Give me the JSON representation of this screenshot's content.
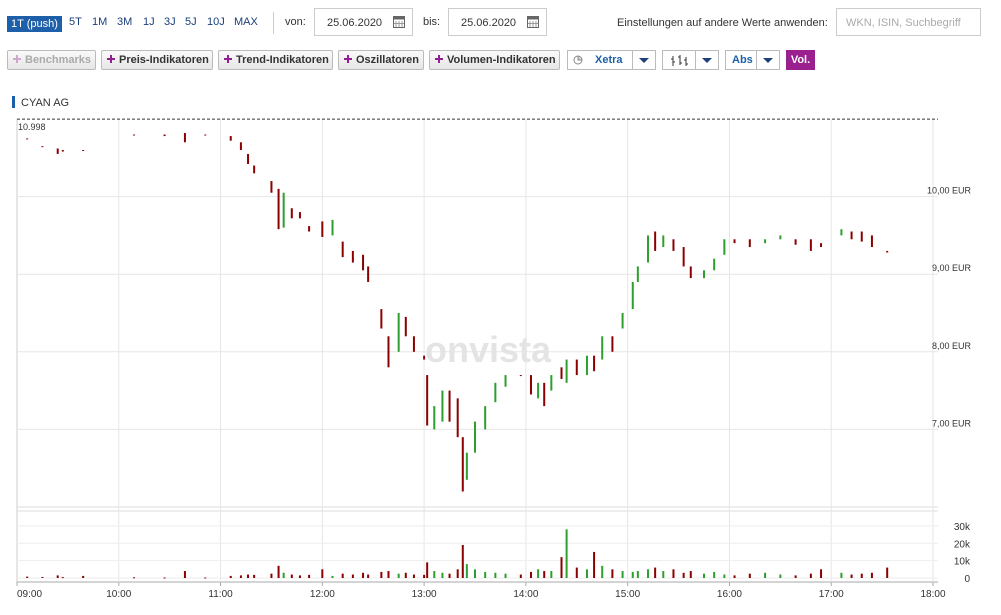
{
  "toolbar": {
    "periods": [
      "1T (push)",
      "5T",
      "1M",
      "3M",
      "1J",
      "3J",
      "5J",
      "10J",
      "MAX"
    ],
    "from_label": "von:",
    "from_date": "25.06.2020",
    "to_label": "bis:",
    "to_date": "25.06.2020",
    "apply_label": "Einstellungen auf andere Werte anwenden:",
    "search_placeholder": "WKN, ISIN, Suchbegriff",
    "buttons": [
      "Benchmarks",
      "Preis-Indikatoren",
      "Trend-Indikatoren",
      "Oszillatoren",
      "Volumen-Indikatoren"
    ],
    "exchange": "Xetra",
    "scale": "Abs",
    "volume_toggle": "Vol."
  },
  "chart_data": {
    "type": "candlestick",
    "title": "CYAN AG",
    "watermark": "onvista",
    "reference_line": 10.998,
    "up_color": "#2e9e2e",
    "down_color": "#8b0000",
    "grid": true,
    "xlim": [
      9,
      18
    ],
    "xticks": [
      {
        "value": 9,
        "label": "09:00"
      },
      {
        "value": 10,
        "label": "10:00"
      },
      {
        "value": 11,
        "label": "11:00"
      },
      {
        "value": 12,
        "label": "12:00"
      },
      {
        "value": 13,
        "label": "13:00"
      },
      {
        "value": 14,
        "label": "14:00"
      },
      {
        "value": 15,
        "label": "15:00"
      },
      {
        "value": 16,
        "label": "16:00"
      },
      {
        "value": 17,
        "label": "17:00"
      },
      {
        "value": 18,
        "label": "18:00"
      }
    ],
    "ylim": [
      6.0,
      11.0
    ],
    "yticks": [
      {
        "value": 10,
        "label": "10,00 EUR"
      },
      {
        "value": 9,
        "label": "9,00 EUR"
      },
      {
        "value": 8,
        "label": "8,00 EUR"
      },
      {
        "value": 7,
        "label": "7,00 EUR"
      }
    ],
    "y2lim": [
      0,
      38000
    ],
    "y2ticks": [
      {
        "value": 30000,
        "label": "30k"
      },
      {
        "value": 20000,
        "label": "20k"
      },
      {
        "value": 10000,
        "label": "10k"
      },
      0
    ],
    "x": [
      9.1,
      9.25,
      9.4,
      9.45,
      9.65,
      10.15,
      10.45,
      10.65,
      10.85,
      11.1,
      11.2,
      11.27,
      11.33,
      11.5,
      11.57,
      11.62,
      11.7,
      11.78,
      11.87,
      12.0,
      12.1,
      12.2,
      12.3,
      12.4,
      12.45,
      12.58,
      12.65,
      12.75,
      12.82,
      12.9,
      13.0,
      13.03,
      13.1,
      13.18,
      13.25,
      13.33,
      13.38,
      13.42,
      13.5,
      13.6,
      13.7,
      13.8,
      13.95,
      14.05,
      14.12,
      14.18,
      14.25,
      14.35,
      14.4,
      14.5,
      14.6,
      14.67,
      14.75,
      14.85,
      14.95,
      15.05,
      15.1,
      15.2,
      15.27,
      15.35,
      15.45,
      15.55,
      15.62,
      15.75,
      15.85,
      15.95,
      16.05,
      16.2,
      16.35,
      16.5,
      16.65,
      16.8,
      16.9,
      17.1,
      17.2,
      17.3,
      17.4,
      17.55
    ],
    "open": [
      10.75,
      10.65,
      10.62,
      10.6,
      10.6,
      10.8,
      10.8,
      10.82,
      10.8,
      10.78,
      10.7,
      10.55,
      10.4,
      10.2,
      10.1,
      9.6,
      9.85,
      9.8,
      9.62,
      9.68,
      9.5,
      9.42,
      9.3,
      9.25,
      9.1,
      8.55,
      8.2,
      8.0,
      8.45,
      8.2,
      7.95,
      7.7,
      7.0,
      7.1,
      7.5,
      7.4,
      6.9,
      6.35,
      6.7,
      7.0,
      7.35,
      7.55,
      7.7,
      7.7,
      7.4,
      7.6,
      7.5,
      7.8,
      7.6,
      7.9,
      7.7,
      7.95,
      7.9,
      8.2,
      8.3,
      8.55,
      8.9,
      9.15,
      9.55,
      9.35,
      9.45,
      9.35,
      9.1,
      8.95,
      9.05,
      9.25,
      9.45,
      9.45,
      9.4,
      9.45,
      9.45,
      9.45,
      9.4,
      9.5,
      9.55,
      9.55,
      9.5,
      9.3
    ],
    "close": [
      10.75,
      10.64,
      10.55,
      10.58,
      10.6,
      10.79,
      10.78,
      10.7,
      10.8,
      10.72,
      10.6,
      10.42,
      10.3,
      10.05,
      9.58,
      10.05,
      9.72,
      9.72,
      9.55,
      9.48,
      9.7,
      9.22,
      9.15,
      9.05,
      8.9,
      8.3,
      7.8,
      8.5,
      8.2,
      8.0,
      7.9,
      7.05,
      7.3,
      7.5,
      7.1,
      6.9,
      6.2,
      6.7,
      7.1,
      7.3,
      7.6,
      7.7,
      7.7,
      7.45,
      7.6,
      7.3,
      7.7,
      7.65,
      7.9,
      7.7,
      7.95,
      7.75,
      8.2,
      8.0,
      8.5,
      8.9,
      9.1,
      9.5,
      9.3,
      9.5,
      9.3,
      9.1,
      8.95,
      9.05,
      9.2,
      9.45,
      9.4,
      9.35,
      9.45,
      9.5,
      9.38,
      9.3,
      9.35,
      9.58,
      9.45,
      9.42,
      9.35,
      9.28
    ],
    "volume": [
      800,
      600,
      1500,
      500,
      1200,
      400,
      300,
      4000,
      300,
      1200,
      1500,
      2000,
      1800,
      2500,
      7000,
      3000,
      2000,
      1500,
      1800,
      5000,
      1200,
      2500,
      2000,
      3000,
      2000,
      3500,
      4000,
      2500,
      3000,
      2000,
      1800,
      9000,
      4000,
      3000,
      2500,
      5000,
      19000,
      8000,
      5000,
      3500,
      3000,
      2500,
      2000,
      3500,
      5000,
      4000,
      4000,
      12000,
      28000,
      6000,
      5000,
      15000,
      7000,
      5000,
      4000,
      3500,
      4000,
      5000,
      6000,
      4000,
      5000,
      3000,
      4000,
      2500,
      3500,
      2000,
      1500,
      2500,
      3000,
      2000,
      1500,
      2500,
      5000,
      3000,
      2000,
      2500,
      3000,
      6000
    ]
  }
}
